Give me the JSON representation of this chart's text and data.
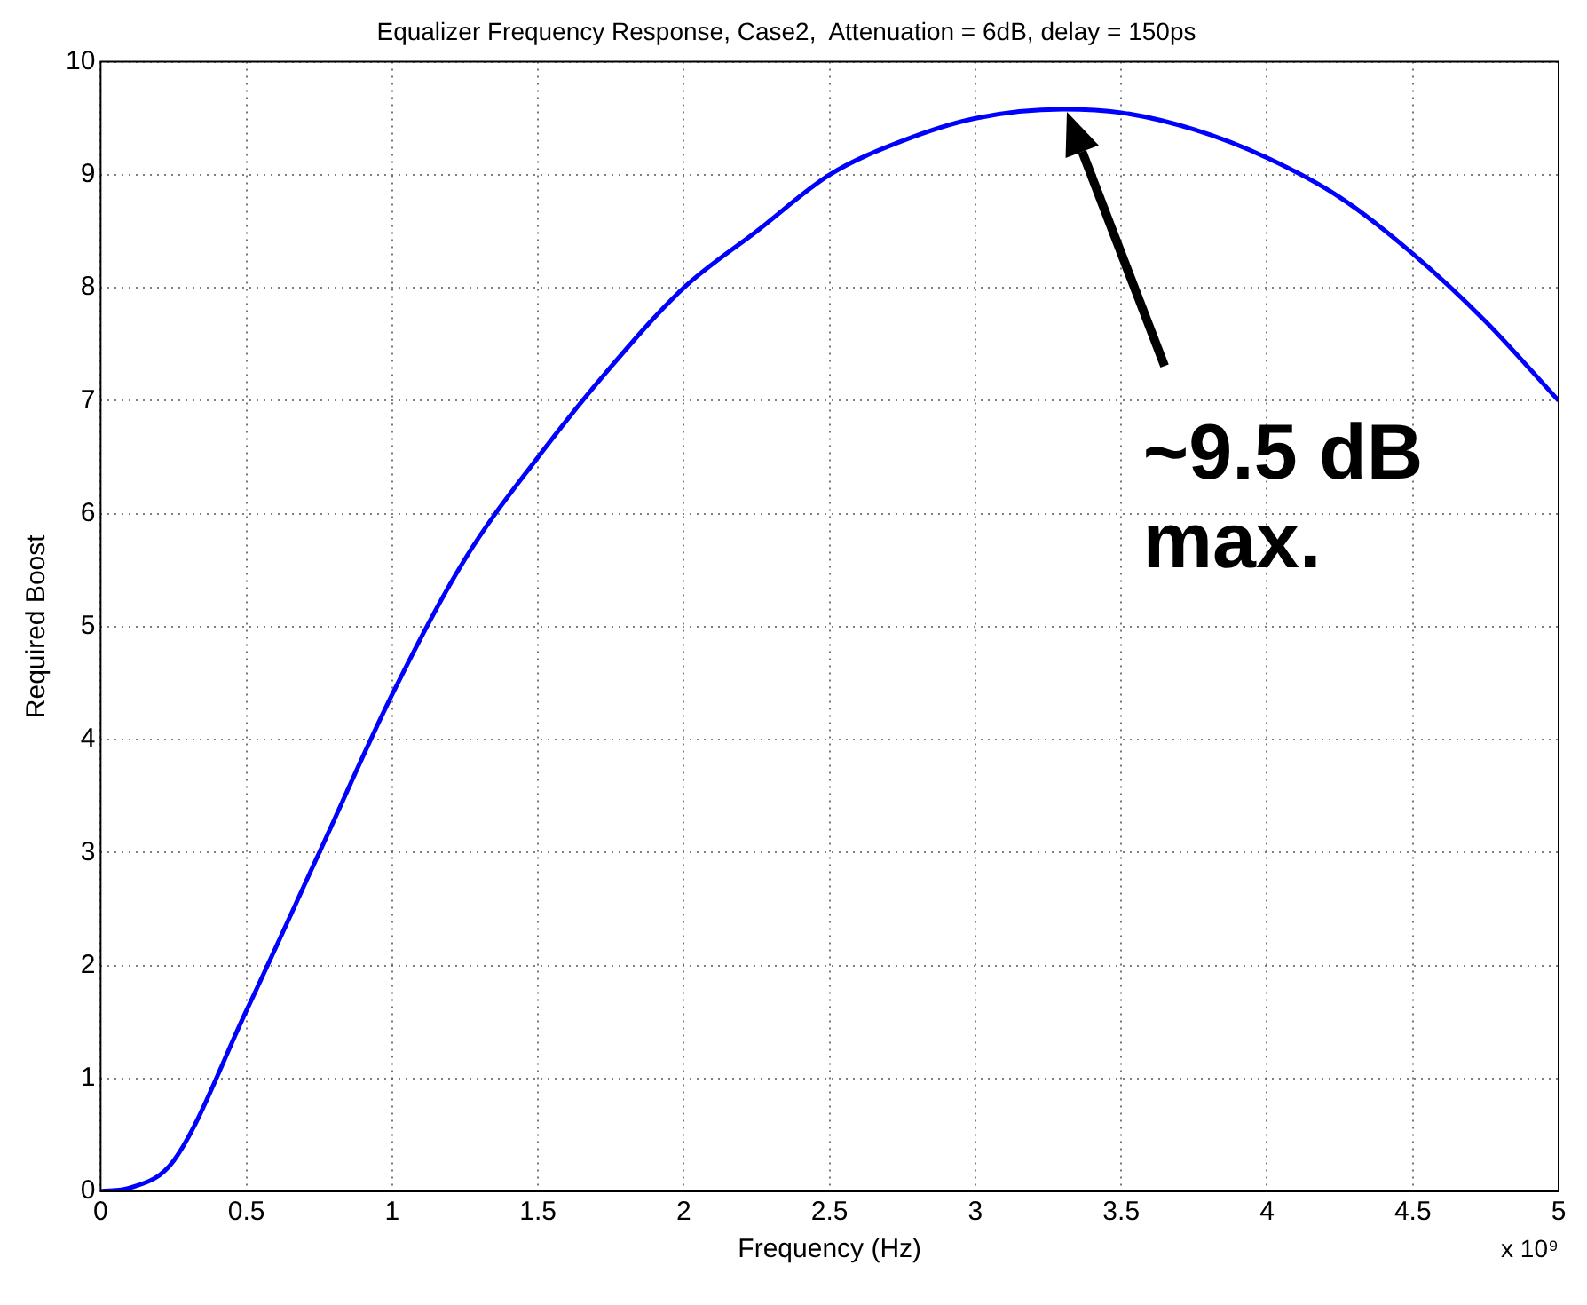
{
  "chart_data": {
    "type": "line",
    "title": "Equalizer Frequency Response, Case2,  Attenuation = 6dB, delay = 150ps",
    "xlabel": "Frequency (Hz)",
    "ylabel": "Required Boost",
    "x": [
      0,
      0.1,
      0.25,
      0.5,
      0.75,
      1,
      1.25,
      1.5,
      1.75,
      2,
      2.25,
      2.5,
      2.75,
      3,
      3.3,
      3.5,
      3.75,
      4,
      4.25,
      4.5,
      4.75,
      5
    ],
    "series": [
      {
        "color": "#0000ff",
        "values": [
          0,
          0.03,
          0.27,
          1.6,
          3.0,
          4.4,
          5.6,
          6.5,
          7.3,
          8.0,
          8.5,
          9.0,
          9.3,
          9.5,
          9.58,
          9.55,
          9.4,
          9.15,
          8.8,
          8.3,
          7.7,
          7.0
        ]
      }
    ],
    "xlim": [
      0,
      5
    ],
    "xticks": [
      0,
      0.5,
      1,
      1.5,
      2,
      2.5,
      3,
      3.5,
      4,
      4.5,
      5
    ],
    "ylim": [
      0,
      10
    ],
    "yticks": [
      0,
      1,
      2,
      3,
      4,
      5,
      6,
      7,
      8,
      9,
      10
    ],
    "grid": true,
    "legend": false,
    "marker": "none",
    "line_style": "solid",
    "annotations": [
      "~9.5 dB\nmax.",
      "x 10⁹"
    ]
  }
}
